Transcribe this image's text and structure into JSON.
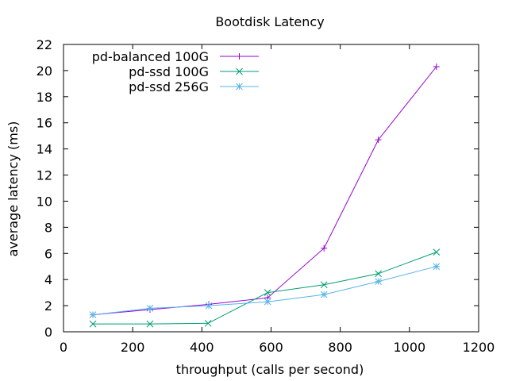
{
  "chart_data": {
    "type": "line",
    "title": "Bootdisk Latency",
    "xlabel": "throughput (calls per second)",
    "ylabel": "average latency (ms)",
    "xlim": [
      0,
      1200
    ],
    "ylim": [
      0,
      22
    ],
    "xticks": [
      "0",
      "200",
      "400",
      "600",
      "800",
      "1000",
      "1200"
    ],
    "yticks": [
      "0",
      "2",
      "4",
      "6",
      "8",
      "10",
      "12",
      "14",
      "16",
      "18",
      "20",
      "22"
    ],
    "grid": false,
    "legend_position": "top-left",
    "series": [
      {
        "name": "pd-balanced 100G",
        "color": "#9400d3",
        "marker": "plus",
        "x": [
          85,
          250,
          420,
          590,
          753,
          910,
          1078
        ],
        "y": [
          1.3,
          1.7,
          2.1,
          2.6,
          6.4,
          14.7,
          20.3
        ]
      },
      {
        "name": "pd-ssd 100G",
        "color": "#009e73",
        "marker": "cross",
        "x": [
          85,
          250,
          418,
          590,
          753,
          910,
          1078
        ],
        "y": [
          0.6,
          0.6,
          0.65,
          3.0,
          3.6,
          4.45,
          6.1
        ]
      },
      {
        "name": "pd-ssd 256G",
        "color": "#56b4e9",
        "marker": "star",
        "x": [
          85,
          250,
          420,
          590,
          753,
          910,
          1078
        ],
        "y": [
          1.3,
          1.8,
          2.0,
          2.3,
          2.85,
          3.85,
          5.0
        ]
      }
    ]
  }
}
